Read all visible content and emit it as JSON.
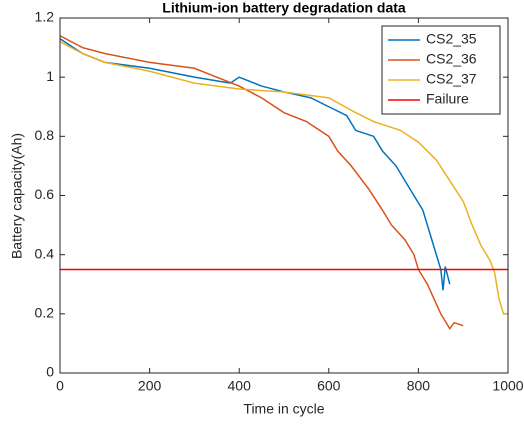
{
  "chart_data": {
    "type": "line",
    "title": "Lithium-ion battery degradation data",
    "x_label": "Time in cycle",
    "y_label": "Battery capacity(Ah)",
    "xlim": [
      0,
      1000
    ],
    "xticks": [
      0,
      200,
      400,
      600,
      800,
      1000
    ],
    "ylim": [
      0,
      1.2
    ],
    "yticks": [
      0,
      0.2,
      0.4,
      0.6,
      0.8,
      1,
      1.2
    ],
    "legend": "northeast",
    "series": [
      {
        "name": "CS2_35",
        "color": "#0072bd",
        "x": [
          0,
          50,
          100,
          200,
          300,
          380,
          400,
          450,
          500,
          560,
          600,
          640,
          660,
          700,
          720,
          750,
          770,
          790,
          810,
          820,
          830,
          840,
          850,
          855,
          860,
          870
        ],
        "values": [
          1.13,
          1.08,
          1.05,
          1.03,
          1.0,
          0.98,
          1.0,
          0.97,
          0.95,
          0.93,
          0.9,
          0.87,
          0.82,
          0.8,
          0.75,
          0.7,
          0.65,
          0.6,
          0.55,
          0.5,
          0.45,
          0.4,
          0.35,
          0.28,
          0.36,
          0.3
        ]
      },
      {
        "name": "CS2_36",
        "color": "#d95319",
        "x": [
          0,
          50,
          100,
          200,
          300,
          350,
          400,
          450,
          500,
          550,
          600,
          620,
          650,
          690,
          720,
          740,
          770,
          790,
          800,
          820,
          835,
          850,
          870,
          880,
          900
        ],
        "values": [
          1.14,
          1.1,
          1.08,
          1.05,
          1.03,
          1.0,
          0.97,
          0.93,
          0.88,
          0.85,
          0.8,
          0.75,
          0.7,
          0.62,
          0.55,
          0.5,
          0.45,
          0.4,
          0.35,
          0.3,
          0.25,
          0.2,
          0.15,
          0.17,
          0.16
        ]
      },
      {
        "name": "CS2_37",
        "color": "#edb120",
        "x": [
          0,
          50,
          100,
          200,
          300,
          400,
          500,
          600,
          660,
          700,
          760,
          800,
          840,
          870,
          900,
          920,
          940,
          960,
          970,
          980,
          990,
          1000
        ],
        "values": [
          1.12,
          1.08,
          1.05,
          1.02,
          0.98,
          0.96,
          0.95,
          0.93,
          0.88,
          0.85,
          0.82,
          0.78,
          0.72,
          0.65,
          0.58,
          0.5,
          0.43,
          0.38,
          0.34,
          0.25,
          0.2,
          0.2
        ]
      },
      {
        "name": "Failure",
        "color": "#ff0000",
        "x": [
          0,
          1000
        ],
        "values": [
          0.35,
          0.35
        ]
      }
    ]
  }
}
